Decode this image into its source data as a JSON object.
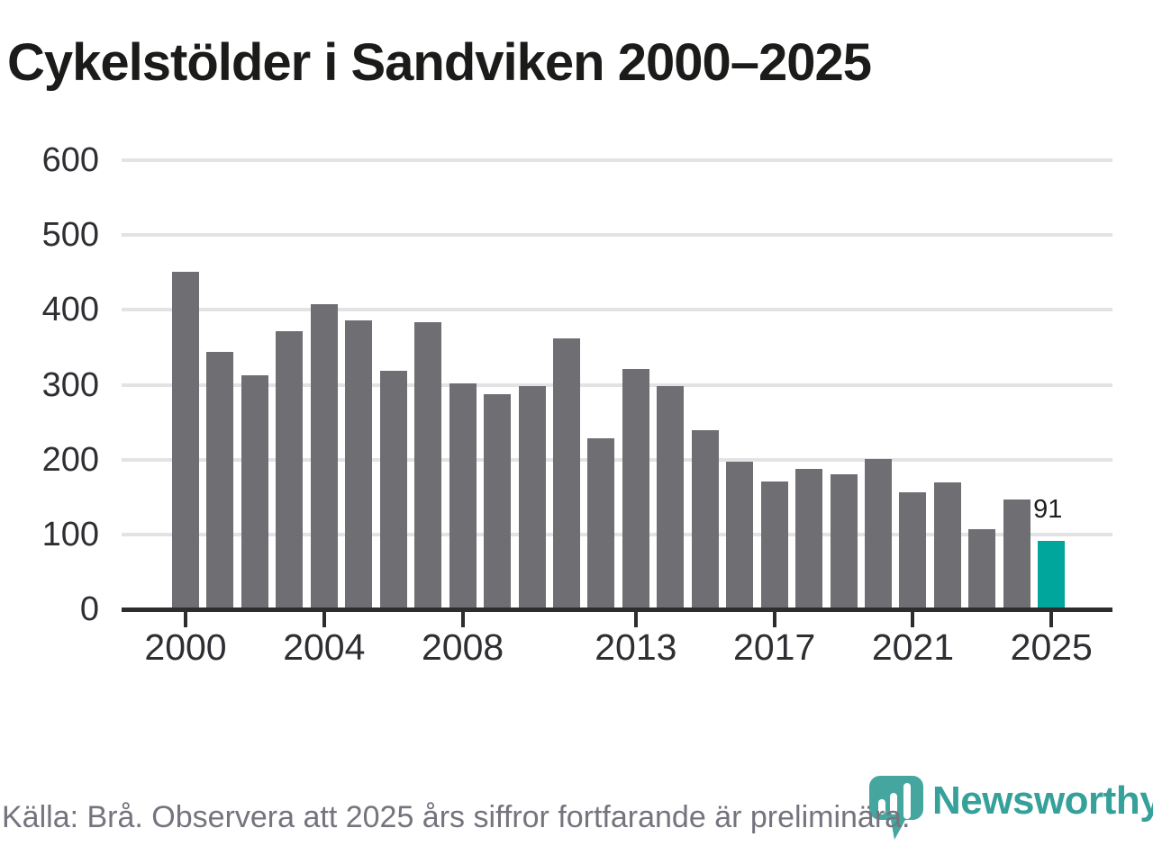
{
  "title": "Cykelstölder i Sandviken 2000–2025",
  "chart_data": {
    "type": "bar",
    "x": [
      2000,
      2001,
      2002,
      2003,
      2004,
      2005,
      2006,
      2007,
      2008,
      2009,
      2010,
      2011,
      2012,
      2013,
      2014,
      2015,
      2016,
      2017,
      2018,
      2019,
      2020,
      2021,
      2022,
      2023,
      2024,
      2025
    ],
    "values": [
      451,
      344,
      313,
      372,
      408,
      386,
      319,
      383,
      302,
      287,
      298,
      362,
      228,
      321,
      298,
      239,
      197,
      171,
      188,
      180,
      201,
      156,
      170,
      107,
      147,
      91
    ],
    "title": "Cykelstölder i Sandviken 2000–2025",
    "xlabel": "",
    "ylabel": "",
    "ylim": [
      0,
      600
    ],
    "yticks": [
      0,
      100,
      200,
      300,
      400,
      500,
      600
    ],
    "xticks": [
      2000,
      2004,
      2008,
      2013,
      2017,
      2021,
      2025
    ],
    "grid": "horizontal",
    "legend": "none",
    "highlight_year": 2025,
    "highlight_value_label": "91",
    "bar_color": "#6E6E73",
    "highlight_color": "#00A59B",
    "gridline_color": "#E3E3E5",
    "axis_color": "#2D2D2D",
    "tick_label_color": "#2E2E33"
  },
  "footer": {
    "source_note": "Källa: Brå. Observera att 2025 års siffror fortfarande är preliminära.",
    "brand": "Newsworthy",
    "brand_color": "#36A09A",
    "logo_bubble_color": "#45A59F"
  }
}
